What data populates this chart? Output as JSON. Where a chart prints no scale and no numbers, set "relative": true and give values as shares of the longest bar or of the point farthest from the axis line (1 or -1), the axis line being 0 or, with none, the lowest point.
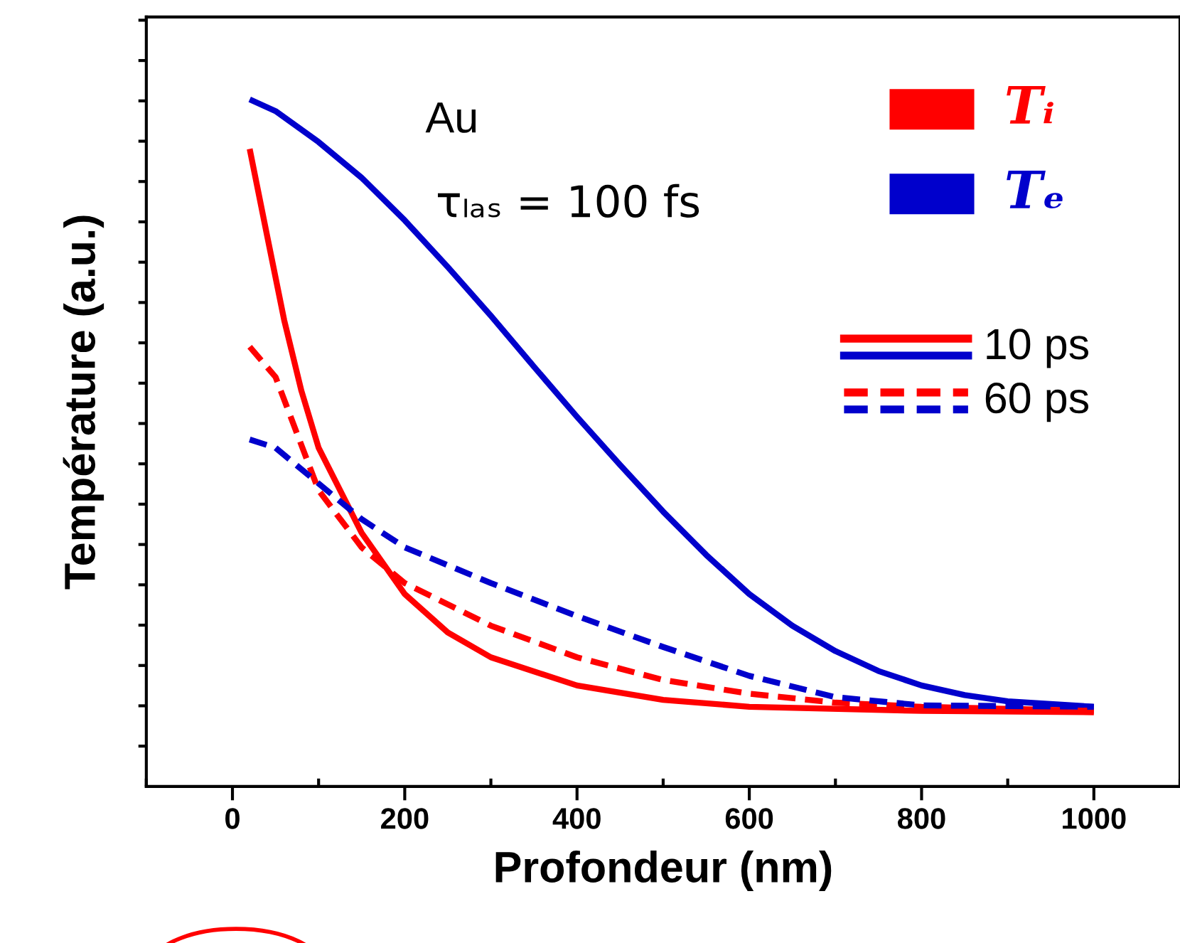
{
  "chart_data": {
    "type": "line",
    "relative": true,
    "xlabel": "Profondeur (nm)",
    "ylabel": "Température (a.u.)",
    "xlim": [
      -100,
      1100
    ],
    "xticks": [
      0,
      200,
      400,
      600,
      800,
      1000
    ],
    "grid": false,
    "marker": "none",
    "annotations": [
      "Au",
      "τₗₐₛ = 100 fs",
      "Tᵢ",
      "Tₑ",
      "10 ps",
      "60 ps"
    ],
    "series": [
      {
        "color": "#ff0000",
        "line_style": "solid",
        "x": [
          20,
          40,
          60,
          80,
          100,
          150,
          200,
          250,
          300,
          400,
          500,
          600,
          800,
          1000
        ],
        "values": [
          0.928,
          0.803,
          0.679,
          0.576,
          0.493,
          0.369,
          0.28,
          0.224,
          0.188,
          0.147,
          0.126,
          0.116,
          0.11,
          0.108
        ]
      },
      {
        "color": "#0000cc",
        "line_style": "solid",
        "x": [
          20,
          50,
          100,
          150,
          200,
          250,
          300,
          350,
          400,
          450,
          500,
          550,
          600,
          650,
          700,
          750,
          800,
          850,
          900,
          1000
        ],
        "values": [
          1.0,
          0.983,
          0.938,
          0.886,
          0.824,
          0.756,
          0.685,
          0.611,
          0.538,
          0.468,
          0.4,
          0.337,
          0.28,
          0.234,
          0.197,
          0.168,
          0.147,
          0.133,
          0.124,
          0.116
        ]
      },
      {
        "color": "#ff0000",
        "line_style": "dashed",
        "x": [
          20,
          50,
          100,
          150,
          200,
          300,
          400,
          500,
          600,
          700,
          800,
          1000
        ],
        "values": [
          0.64,
          0.596,
          0.431,
          0.348,
          0.296,
          0.234,
          0.188,
          0.155,
          0.135,
          0.122,
          0.116,
          0.11
        ]
      },
      {
        "color": "#0000cc",
        "line_style": "dashed",
        "x": [
          20,
          50,
          100,
          150,
          200,
          300,
          400,
          500,
          600,
          700,
          800,
          1000
        ],
        "values": [
          0.505,
          0.493,
          0.441,
          0.389,
          0.348,
          0.296,
          0.248,
          0.203,
          0.161,
          0.13,
          0.118,
          0.116
        ]
      }
    ]
  }
}
